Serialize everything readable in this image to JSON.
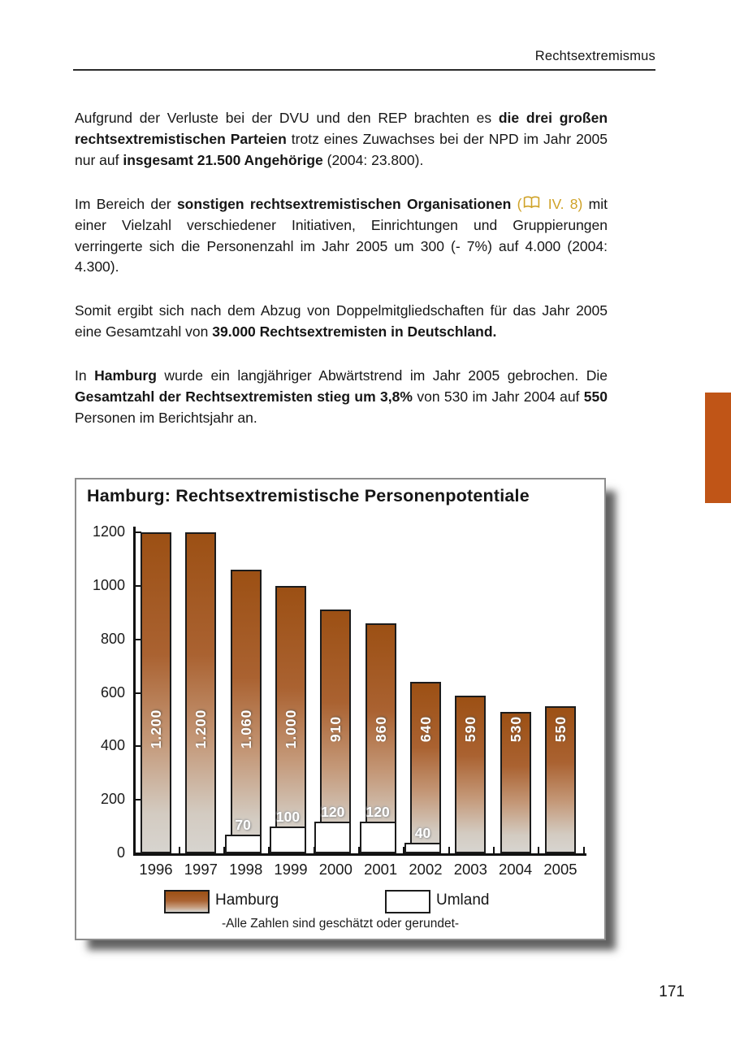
{
  "page": {
    "header": "Rechtsextremismus",
    "page_number": "171"
  },
  "colors": {
    "accent_tab": "#C05517",
    "reference_gold": "#CFA227",
    "bar_top": "#9C5014",
    "bar_bottom": "#D7D4CF"
  },
  "paragraphs": [
    {
      "runs": [
        {
          "t": "Aufgrund der Verluste bei der DVU und den REP brachten es "
        },
        {
          "t": "die drei großen rechtsextremistischen Parteien",
          "b": true
        },
        {
          "t": " trotz eines Zuwachses bei der NPD im Jahr 2005 nur auf "
        },
        {
          "t": "insgesamt 21.500 Angehörige",
          "b": true
        },
        {
          "t": " (2004: 23.800)."
        }
      ]
    },
    {
      "runs": [
        {
          "t": "Im Bereich der "
        },
        {
          "t": "sonstigen rechtsextremistischen Organisationen",
          "b": true
        },
        {
          "t": " "
        },
        {
          "t": "(",
          "gold": true
        },
        {
          "icon": "book-icon"
        },
        {
          "t": " IV. 8)",
          "gold": true
        },
        {
          "t": " mit einer Vielzahl verschiedener Initiativen, Einrichtungen und Gruppierungen verringerte sich die Personenzahl im Jahr 2005 um 300 (- 7%) auf 4.000 (2004: 4.300)."
        }
      ]
    },
    {
      "runs": [
        {
          "t": "Somit ergibt sich nach dem Abzug von Doppelmitgliedschaften für das Jahr 2005 eine Gesamtzahl von "
        },
        {
          "t": "39.000 Rechtsextremisten in Deutschland.",
          "b": true
        }
      ]
    },
    {
      "runs": [
        {
          "t": "In "
        },
        {
          "t": "Hamburg",
          "b": true
        },
        {
          "t": " wurde ein langjähriger Abwärtstrend im Jahr 2005 gebrochen. Die "
        },
        {
          "t": "Gesamtzahl der Rechtsextremisten stieg um 3,8%",
          "b": true
        },
        {
          "t": " von 530 im Jahr 2004 auf "
        },
        {
          "t": "550",
          "b": true
        },
        {
          "t": " Personen im Berichtsjahr an."
        }
      ]
    }
  ],
  "chart_data": {
    "type": "bar",
    "title": "Hamburg: Rechtsextremistische Personenpotentiale",
    "categories": [
      "1996",
      "1997",
      "1998",
      "1999",
      "2000",
      "2001",
      "2002",
      "2003",
      "2004",
      "2005"
    ],
    "series": [
      {
        "name": "Hamburg",
        "values": [
          1200,
          1200,
          1060,
          1000,
          910,
          860,
          640,
          590,
          530,
          550
        ],
        "labels": [
          "1.200",
          "1.200",
          "1.060",
          "1.000",
          "910",
          "860",
          "640",
          "590",
          "530",
          "550"
        ]
      },
      {
        "name": "Umland",
        "values": [
          null,
          null,
          70,
          100,
          120,
          120,
          40,
          null,
          null,
          null
        ],
        "labels": [
          "",
          "",
          "70",
          "100",
          "120",
          "120",
          "40",
          "",
          "",
          ""
        ]
      }
    ],
    "ylim": [
      0,
      1200
    ],
    "yticks": [
      0,
      200,
      400,
      600,
      800,
      1000,
      1200
    ],
    "legend_position": "bottom",
    "grid": false,
    "footnote": "-Alle Zahlen sind geschätzt oder gerundet-"
  }
}
